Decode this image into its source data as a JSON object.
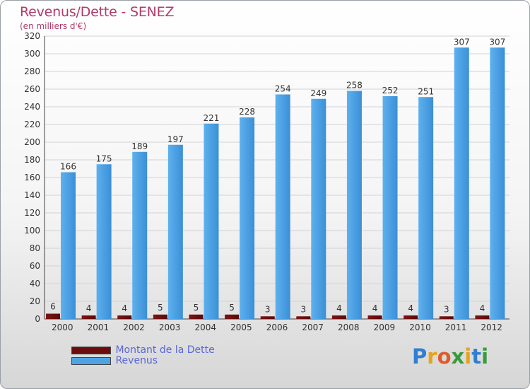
{
  "chart_data": {
    "type": "bar",
    "title": "Revenus/Dette - SENEZ",
    "subtitle": "(en milliers d'€)",
    "categories": [
      "2000",
      "2001",
      "2002",
      "2003",
      "2004",
      "2005",
      "2006",
      "2007",
      "2008",
      "2009",
      "2010",
      "2011",
      "2012"
    ],
    "series": [
      {
        "name": "Montant de la Dette",
        "color": "#6b0d0d",
        "values": [
          6,
          4,
          4,
          5,
          5,
          5,
          3,
          3,
          4,
          4,
          4,
          3,
          4
        ]
      },
      {
        "name": "Revenus",
        "color": "#4fa3e3",
        "values": [
          166,
          175,
          189,
          197,
          221,
          228,
          254,
          249,
          258,
          252,
          251,
          307,
          307
        ]
      }
    ],
    "ylim": [
      0,
      320
    ],
    "yticks": [
      0,
      20,
      40,
      60,
      80,
      100,
      120,
      140,
      160,
      180,
      200,
      220,
      240,
      260,
      280,
      300,
      320
    ],
    "grid": true,
    "legend_position": "bottom-left"
  },
  "branding": {
    "logo_letters": [
      {
        "char": "P",
        "color": "#2e7fd1"
      },
      {
        "char": "r",
        "color": "#e8a21a"
      },
      {
        "char": "o",
        "color": "#e05a2b"
      },
      {
        "char": "x",
        "color": "#3a9a3a"
      },
      {
        "char": "i",
        "color": "#e8a21a"
      },
      {
        "char": "t",
        "color": "#2e7fd1"
      },
      {
        "char": "i",
        "color": "#3a9a3a"
      }
    ]
  }
}
